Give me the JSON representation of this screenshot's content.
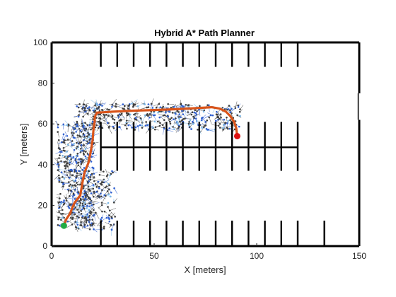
{
  "chart_data": {
    "type": "scatter",
    "title": "Hybrid A* Path Planner",
    "xlabel": "X [meters]",
    "ylabel": "Y [meters]",
    "xlim": [
      0,
      150
    ],
    "ylim": [
      0,
      100
    ],
    "xticks": [
      0,
      50,
      100,
      150
    ],
    "yticks": [
      0,
      20,
      40,
      60,
      80,
      100
    ],
    "grid": false,
    "legend": "none",
    "colors": {
      "obstacles": "#000000",
      "tree_dark": "#404040",
      "tree_blue": "#2f5fd0",
      "tree_light": "#7ab7e8",
      "path": "#d9541a",
      "start": "#22aa44",
      "goal": "#dd1111"
    },
    "obstacles": {
      "border": [
        [
          0,
          0
        ],
        [
          150,
          100
        ]
      ],
      "top_stalls": [
        24,
        32,
        40,
        48,
        56,
        64,
        72,
        80,
        88,
        96,
        104,
        112,
        120
      ],
      "top_stall_y": [
        88,
        100
      ],
      "middle_barrier": {
        "x": [
          24,
          120
        ],
        "y": 48.5
      },
      "middle_stalls": [
        24,
        32,
        40,
        48,
        56,
        64,
        72,
        80,
        88,
        96,
        104,
        112,
        120
      ],
      "middle_stall_y": [
        37,
        61
      ],
      "bottom_stalls": [
        24,
        32,
        40,
        48,
        56,
        64,
        72,
        80,
        88,
        96,
        104,
        112,
        120,
        133
      ],
      "bottom_stall_y": [
        0,
        12.5
      ],
      "right_gap_x": 149.5,
      "right_gap_y": [
        62,
        75
      ]
    },
    "path": {
      "x": [
        6,
        7,
        9,
        11,
        14,
        15,
        16,
        18,
        19,
        20,
        20.5,
        21,
        21,
        21.5,
        22,
        22,
        23,
        25,
        30,
        40,
        50,
        60,
        70,
        78,
        82,
        85,
        87,
        89,
        90,
        90.5
      ],
      "y": [
        10,
        13,
        16,
        21,
        25,
        31,
        36,
        41,
        46,
        52,
        58,
        61,
        63,
        64.5,
        65,
        65.5,
        65.6,
        65.7,
        66,
        66.5,
        66.8,
        67.2,
        67.7,
        68.2,
        67.5,
        66,
        64,
        61,
        58,
        54
      ]
    },
    "start": {
      "x": 6,
      "y": 10
    },
    "goal": {
      "x": 90.5,
      "y": 54
    }
  }
}
